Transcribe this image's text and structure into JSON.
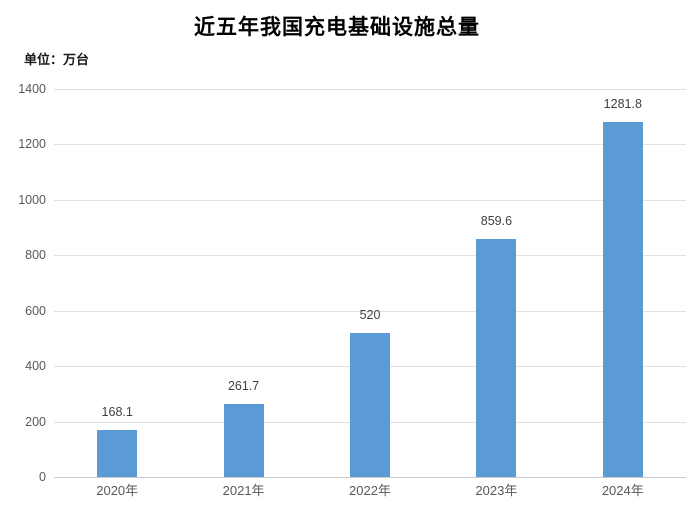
{
  "title": "近五年我国充电基础设施总量",
  "unit_label": "单位：万台",
  "colors": {
    "bar": "#5b9bd5",
    "gridline": "#e2e2e2",
    "axis_line": "#c9c9c9",
    "axis_text": "#595959",
    "value_label_text": "#404040",
    "title_text": "#000000"
  },
  "chart_data": {
    "type": "bar",
    "title": "近五年我国充电基础设施总量",
    "subtitle": "单位：万台",
    "categories": [
      "2020年",
      "2021年",
      "2022年",
      "2023年",
      "2024年"
    ],
    "values": [
      168.1,
      261.7,
      520,
      859.6,
      1281.8
    ],
    "data_labels": [
      "168.1",
      "261.7",
      "520",
      "859.6",
      "1281.8"
    ],
    "xlabel": "",
    "ylabel": "万台",
    "ylim": [
      0,
      1400
    ],
    "ytick_step": 200,
    "yticks": [
      0,
      200,
      400,
      600,
      800,
      1000,
      1200,
      1400
    ],
    "grid": true,
    "legend": false,
    "bar_color": "#5b9bd5"
  }
}
